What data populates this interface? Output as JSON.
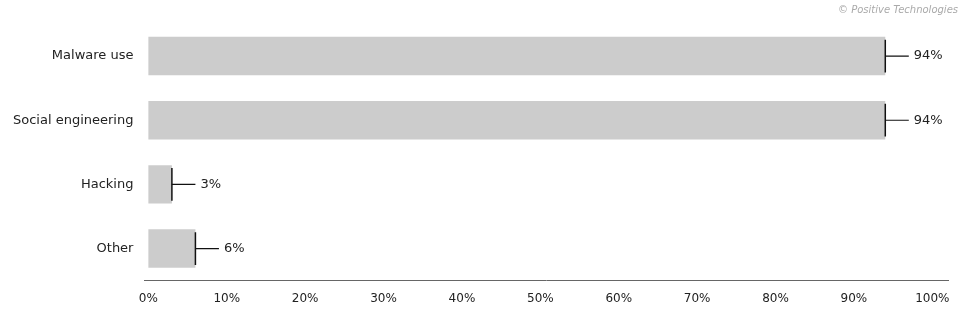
{
  "chart_data": {
    "type": "bar",
    "orientation": "horizontal",
    "categories": [
      "Malware use",
      "Social engineering",
      "Hacking",
      "Other"
    ],
    "values": [
      94,
      94,
      3,
      6
    ],
    "errors": [
      3,
      3,
      3,
      3
    ],
    "value_labels": [
      "94%",
      "94%",
      "3%",
      "6%"
    ],
    "data_labels": true,
    "color": "#cccccc",
    "xlim": [
      -0.5,
      102
    ],
    "xticks": [
      {
        "value": 0,
        "label": "0%"
      },
      {
        "value": 10,
        "label": "10%"
      },
      {
        "value": 20,
        "label": "20%"
      },
      {
        "value": 30,
        "label": "30%"
      },
      {
        "value": 40,
        "label": "40%"
      },
      {
        "value": 50,
        "label": "50%"
      },
      {
        "value": 60,
        "label": "60%"
      },
      {
        "value": 70,
        "label": "70%"
      },
      {
        "value": 80,
        "label": "80%"
      },
      {
        "value": 90,
        "label": "90%"
      },
      {
        "value": 100,
        "label": "100%"
      }
    ],
    "grid": false,
    "annotations": [
      "© Positive Technologies"
    ]
  }
}
